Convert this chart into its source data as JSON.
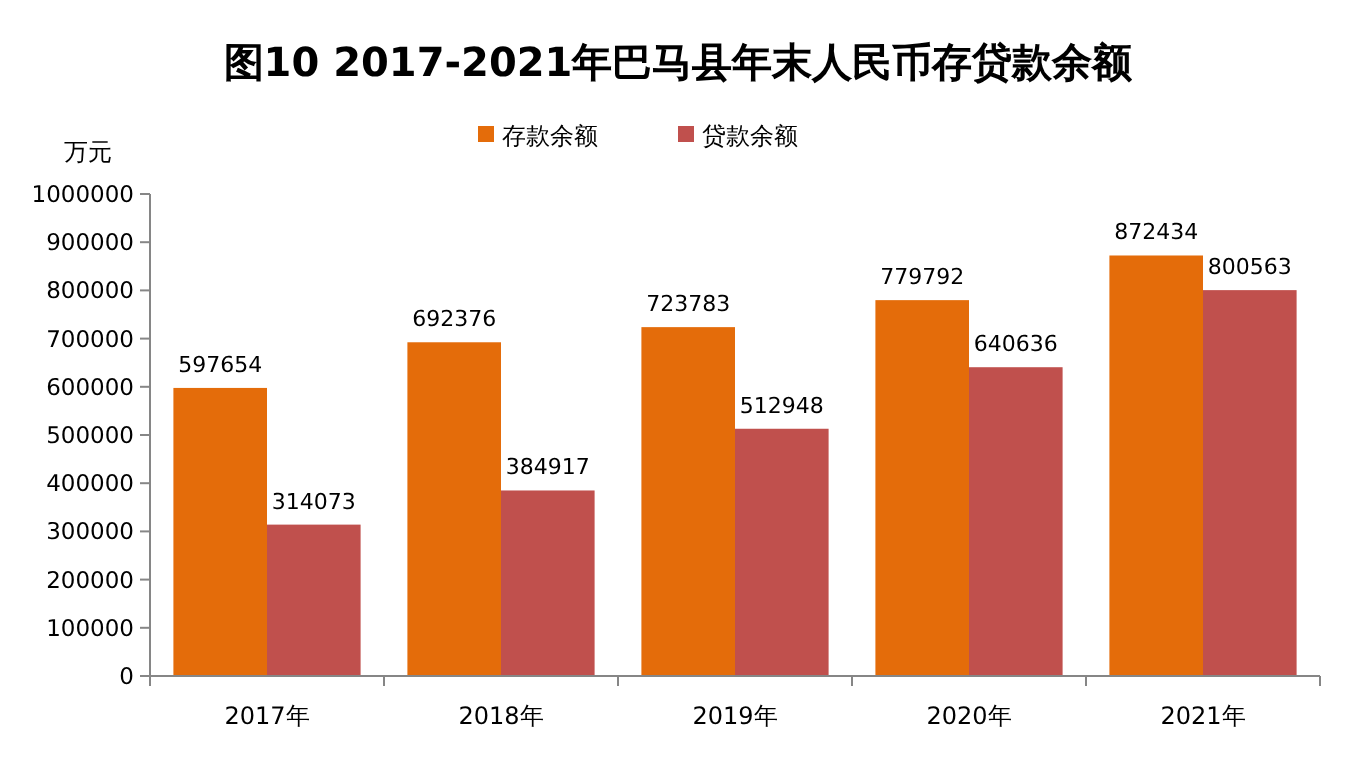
{
  "chart_data": {
    "type": "bar",
    "title": "图10  2017-2021年巴马县年末人民币存贷款余额",
    "ylabel": "万元",
    "categories": [
      "2017年",
      "2018年",
      "2019年",
      "2020年",
      "2021年"
    ],
    "series": [
      {
        "name": "存款余额",
        "color": "#e46c0a",
        "values": [
          597654,
          692376,
          723783,
          779792,
          872434
        ]
      },
      {
        "name": "贷款余额",
        "color": "#c0504d",
        "values": [
          314073,
          384917,
          512948,
          640636,
          800563
        ]
      }
    ],
    "ylim": [
      0,
      1000000
    ],
    "yticks": [
      0,
      100000,
      200000,
      300000,
      400000,
      500000,
      600000,
      700000,
      800000,
      900000,
      1000000
    ],
    "data_labels": true,
    "legend": "top",
    "grid": false
  }
}
